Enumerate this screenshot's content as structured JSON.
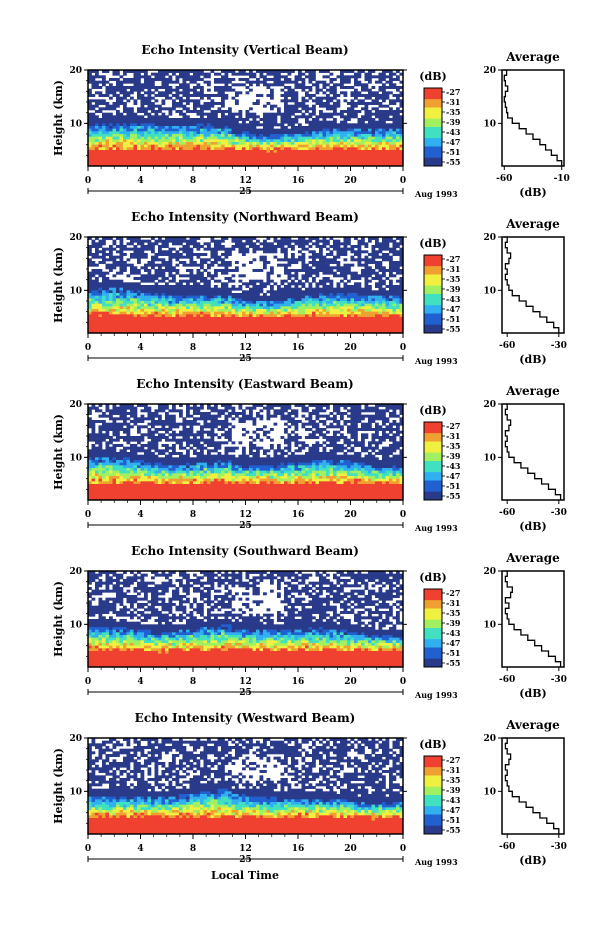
{
  "chart_data": {
    "type": "heatmap",
    "shared": {
      "xlabel": "Local Time",
      "date_label": "Aug 1993",
      "day_label": "25",
      "x_ticks": [
        "0",
        "4",
        "8",
        "12",
        "16",
        "20",
        "0"
      ],
      "xlim": [
        0,
        24
      ],
      "ylabel": "Height (km)",
      "y_ticks": [
        "20",
        "10"
      ],
      "ylim": [
        2,
        20
      ],
      "colorbar_unit": "(dB)",
      "colorbar_ticks": [
        "-27",
        "-31",
        "-35",
        "-39",
        "-43",
        "-47",
        "-51",
        "-55"
      ],
      "colorbar_range": [
        -55,
        -27
      ],
      "colorscale": [
        "#2a3a8a",
        "#2060d0",
        "#30b0f0",
        "#40e0c0",
        "#a0f060",
        "#f0f040",
        "#f0a030",
        "#f04030"
      ],
      "profile_title": "Average",
      "profile_xlabel": "(dB)",
      "profile_y_ticks": [
        "20",
        "10"
      ]
    },
    "panels": [
      {
        "title": "Echo Intensity (Vertical Beam)",
        "profile_x_ticks": [
          "-60",
          "-10"
        ],
        "profile_xlim": [
          -62,
          -8
        ],
        "profile": {
          "height": [
            2,
            3,
            4,
            5,
            6,
            7,
            8,
            9,
            10,
            11,
            12,
            13,
            14,
            15,
            16,
            17,
            18,
            19,
            20
          ],
          "value": [
            -10,
            -14,
            -19,
            -24,
            -29,
            -35,
            -41,
            -47,
            -53,
            -57,
            -58,
            -59,
            -60,
            -59,
            -57,
            -59,
            -60,
            -58,
            -60
          ]
        }
      },
      {
        "title": "Echo Intensity (Northward Beam)",
        "profile_x_ticks": [
          "-60",
          "-30"
        ],
        "profile_xlim": [
          -63,
          -27
        ],
        "profile": {
          "height": [
            2,
            3,
            4,
            5,
            6,
            7,
            8,
            9,
            10,
            11,
            12,
            13,
            14,
            15,
            16,
            17,
            18,
            19,
            20
          ],
          "value": [
            -30,
            -33,
            -37,
            -41,
            -45,
            -49,
            -53,
            -57,
            -59,
            -60,
            -61,
            -60,
            -61,
            -59,
            -58,
            -60,
            -61,
            -60,
            -61
          ]
        }
      },
      {
        "title": "Echo Intensity (Eastward Beam)",
        "profile_x_ticks": [
          "-60",
          "-30"
        ],
        "profile_xlim": [
          -63,
          -27
        ],
        "profile": {
          "height": [
            2,
            3,
            4,
            5,
            6,
            7,
            8,
            9,
            10,
            11,
            12,
            13,
            14,
            15,
            16,
            17,
            18,
            19,
            20
          ],
          "value": [
            -29,
            -32,
            -36,
            -40,
            -44,
            -48,
            -52,
            -56,
            -59,
            -60,
            -61,
            -60,
            -61,
            -59,
            -58,
            -60,
            -61,
            -60,
            -61
          ]
        }
      },
      {
        "title": "Echo Intensity (Southward Beam)",
        "profile_x_ticks": [
          "-60",
          "-30"
        ],
        "profile_xlim": [
          -63,
          -27
        ],
        "profile": {
          "height": [
            2,
            3,
            4,
            5,
            6,
            7,
            8,
            9,
            10,
            11,
            12,
            13,
            14,
            15,
            16,
            17,
            18,
            19,
            20
          ],
          "value": [
            -29,
            -32,
            -36,
            -40,
            -44,
            -48,
            -52,
            -56,
            -59,
            -60,
            -61,
            -59,
            -61,
            -58,
            -57,
            -60,
            -61,
            -60,
            -61
          ]
        }
      },
      {
        "title": "Echo Intensity (Westward Beam)",
        "profile_x_ticks": [
          "-60",
          "-30"
        ],
        "profile_xlim": [
          -63,
          -27
        ],
        "profile": {
          "height": [
            2,
            3,
            4,
            5,
            6,
            7,
            8,
            9,
            10,
            11,
            12,
            13,
            14,
            15,
            16,
            17,
            18,
            19,
            20
          ],
          "value": [
            -30,
            -33,
            -37,
            -41,
            -45,
            -49,
            -53,
            -57,
            -59,
            -60,
            -61,
            -60,
            -61,
            -59,
            -58,
            -60,
            -61,
            -60,
            -61
          ]
        }
      }
    ]
  }
}
